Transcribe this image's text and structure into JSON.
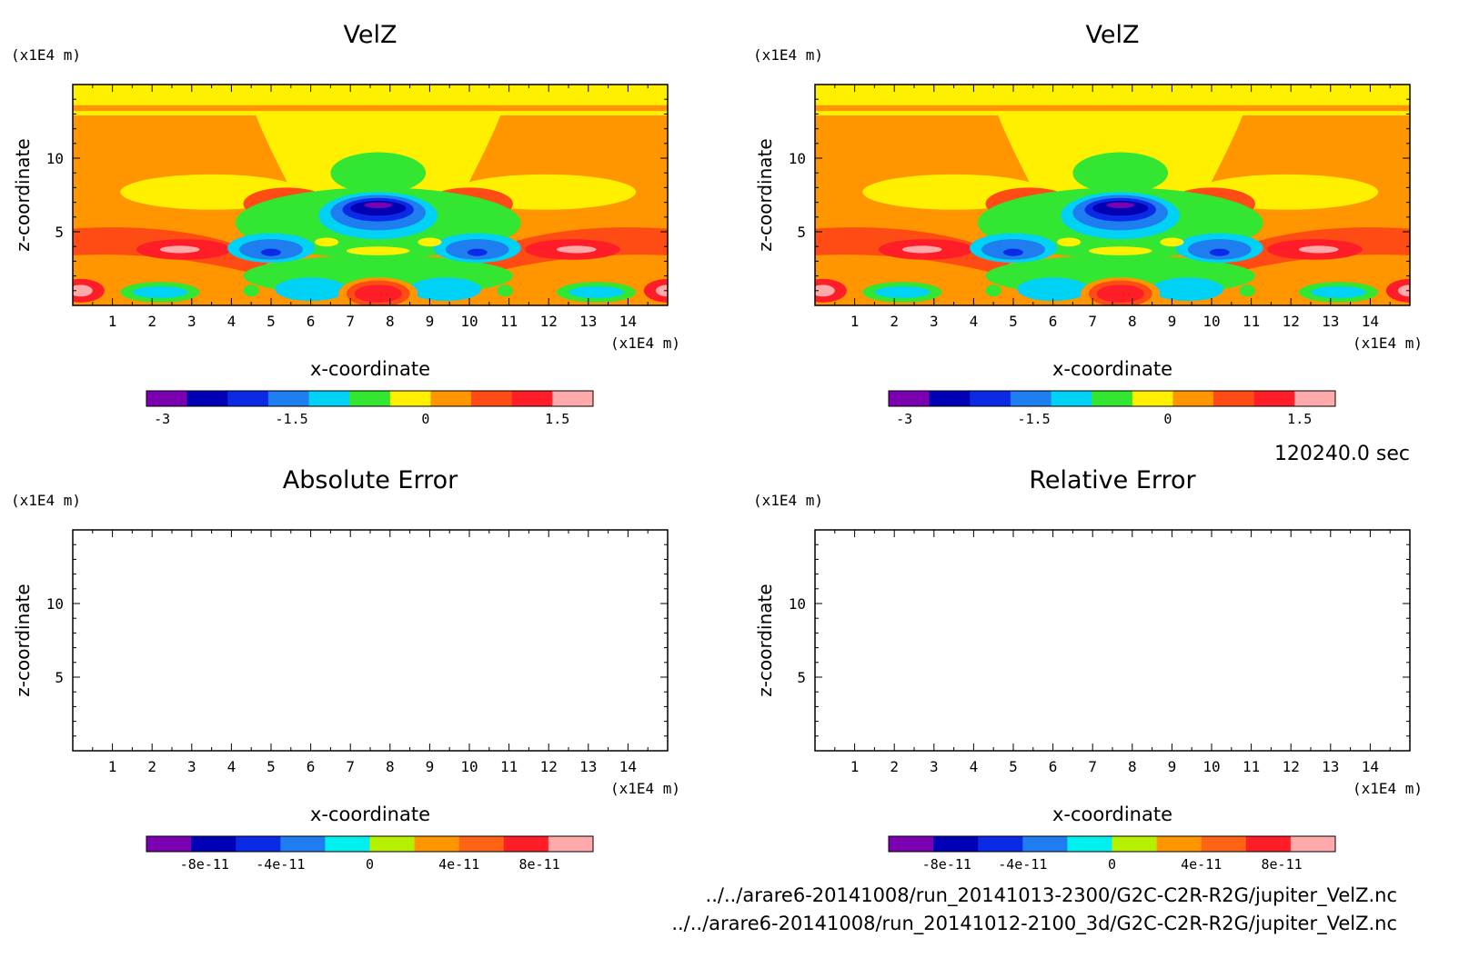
{
  "time_label": "120240.0 sec",
  "files": [
    "../../arare6-20141008/run_20141013-2300/G2C-C2R-R2G/jupiter_VelZ.nc",
    "../../arare6-20141008/run_20141012-2100_3d/G2C-C2R-R2G/jupiter_VelZ.nc"
  ],
  "chart_data": [
    {
      "type": "heatmap",
      "title": "VelZ",
      "xlabel": "x-coordinate",
      "ylabel": "z-coordinate",
      "x_unit": "(x1E4 m)",
      "y_unit": "(x1E4 m)",
      "xlim": [
        0,
        15
      ],
      "ylim": [
        0,
        15
      ],
      "xticks": [
        "1",
        "2",
        "3",
        "4",
        "5",
        "6",
        "7",
        "8",
        "9",
        "10",
        "11",
        "12",
        "13",
        "14"
      ],
      "yticks": [
        "5",
        "10"
      ],
      "colorbar": {
        "colors": [
          "#7b00b0",
          "#0000b4",
          "#0a2ae6",
          "#1e7ef0",
          "#00d2f5",
          "#32e632",
          "#fff000",
          "#ff9600",
          "#ff4b14",
          "#ff1e28",
          "#ffaaaa"
        ],
        "tick_labels": [
          "-3",
          "-1.5",
          "0",
          "1.5"
        ]
      },
      "filled": true
    },
    {
      "type": "heatmap",
      "title": "VelZ",
      "xlabel": "x-coordinate",
      "ylabel": "z-coordinate",
      "x_unit": "(x1E4 m)",
      "y_unit": "(x1E4 m)",
      "xlim": [
        0,
        15
      ],
      "ylim": [
        0,
        15
      ],
      "xticks": [
        "1",
        "2",
        "3",
        "4",
        "5",
        "6",
        "7",
        "8",
        "9",
        "10",
        "11",
        "12",
        "13",
        "14"
      ],
      "yticks": [
        "5",
        "10"
      ],
      "colorbar": {
        "colors": [
          "#7b00b0",
          "#0000b4",
          "#0a2ae6",
          "#1e7ef0",
          "#00d2f5",
          "#32e632",
          "#fff000",
          "#ff9600",
          "#ff4b14",
          "#ff1e28",
          "#ffaaaa"
        ],
        "tick_labels": [
          "-3",
          "-1.5",
          "0",
          "1.5"
        ]
      },
      "filled": true
    },
    {
      "type": "heatmap",
      "title": "Absolute Error",
      "xlabel": "x-coordinate",
      "ylabel": "z-coordinate",
      "x_unit": "(x1E4 m)",
      "y_unit": "(x1E4 m)",
      "xlim": [
        0,
        15
      ],
      "ylim": [
        0,
        15
      ],
      "xticks": [
        "1",
        "2",
        "3",
        "4",
        "5",
        "6",
        "7",
        "8",
        "9",
        "10",
        "11",
        "12",
        "13",
        "14"
      ],
      "yticks": [
        "5",
        "10"
      ],
      "colorbar": {
        "colors": [
          "#7b00b0",
          "#0000b4",
          "#0a2ae6",
          "#1e7ef0",
          "#00f0f0",
          "#b4f000",
          "#ff9600",
          "#ff6414",
          "#ff1e28",
          "#ffaaaa"
        ],
        "tick_labels": [
          "-8e-11",
          "-4e-11",
          "0",
          "4e-11",
          "8e-11"
        ]
      },
      "filled": false
    },
    {
      "type": "heatmap",
      "title": "Relative Error",
      "xlabel": "x-coordinate",
      "ylabel": "z-coordinate",
      "x_unit": "(x1E4 m)",
      "y_unit": "(x1E4 m)",
      "xlim": [
        0,
        15
      ],
      "ylim": [
        0,
        15
      ],
      "xticks": [
        "1",
        "2",
        "3",
        "4",
        "5",
        "6",
        "7",
        "8",
        "9",
        "10",
        "11",
        "12",
        "13",
        "14"
      ],
      "yticks": [
        "5",
        "10"
      ],
      "colorbar": {
        "colors": [
          "#7b00b0",
          "#0000b4",
          "#0a2ae6",
          "#1e7ef0",
          "#00f0f0",
          "#b4f000",
          "#ff9600",
          "#ff6414",
          "#ff1e28",
          "#ffaaaa"
        ],
        "tick_labels": [
          "-8e-11",
          "-4e-11",
          "0",
          "4e-11",
          "8e-11"
        ]
      },
      "filled": false
    }
  ]
}
